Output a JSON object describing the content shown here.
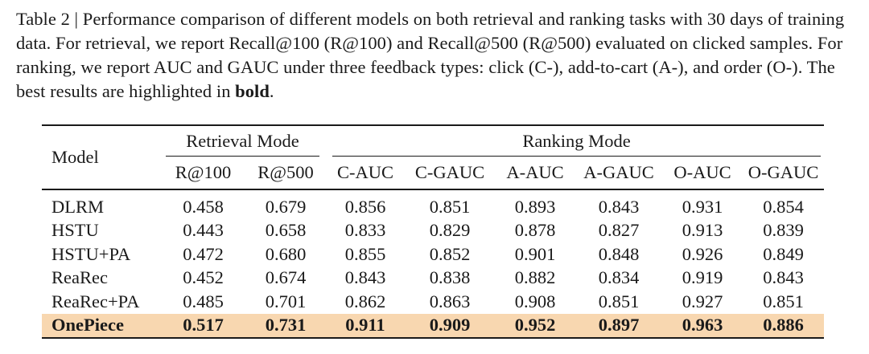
{
  "caption": {
    "label": "Table 2 | ",
    "text_before_bold": "Performance comparison of different models on both retrieval and ranking tasks with 30 days of training data. For retrieval, we report Recall@100 (R@100) and Recall@500 (R@500) evaluated on clicked samples. For ranking, we report AUC and GAUC under three feedback types: click (C-), add-to-cart (A-), and order (O-). The best results are highlighted in ",
    "bold_word": "bold",
    "text_after_bold": "."
  },
  "table": {
    "model_header": "Model",
    "groups": {
      "retrieval": "Retrieval Mode",
      "ranking": "Ranking Mode"
    },
    "columns": [
      "R@100",
      "R@500",
      "C-AUC",
      "C-GAUC",
      "A-AUC",
      "A-GAUC",
      "O-AUC",
      "O-GAUC"
    ],
    "rows": [
      {
        "model": "DLRM",
        "values": [
          "0.458",
          "0.679",
          "0.856",
          "0.851",
          "0.893",
          "0.843",
          "0.931",
          "0.854"
        ]
      },
      {
        "model": "HSTU",
        "values": [
          "0.443",
          "0.658",
          "0.833",
          "0.829",
          "0.878",
          "0.827",
          "0.913",
          "0.839"
        ]
      },
      {
        "model": "HSTU+PA",
        "values": [
          "0.472",
          "0.680",
          "0.855",
          "0.852",
          "0.901",
          "0.848",
          "0.926",
          "0.849"
        ]
      },
      {
        "model": "ReaRec",
        "values": [
          "0.452",
          "0.674",
          "0.843",
          "0.838",
          "0.882",
          "0.834",
          "0.919",
          "0.843"
        ]
      },
      {
        "model": "ReaRec+PA",
        "values": [
          "0.485",
          "0.701",
          "0.862",
          "0.863",
          "0.908",
          "0.851",
          "0.927",
          "0.851"
        ]
      },
      {
        "model": "OnePiece",
        "values": [
          "0.517",
          "0.731",
          "0.911",
          "0.909",
          "0.952",
          "0.897",
          "0.963",
          "0.886"
        ]
      }
    ],
    "highlight_color": "#f8d7b0"
  }
}
